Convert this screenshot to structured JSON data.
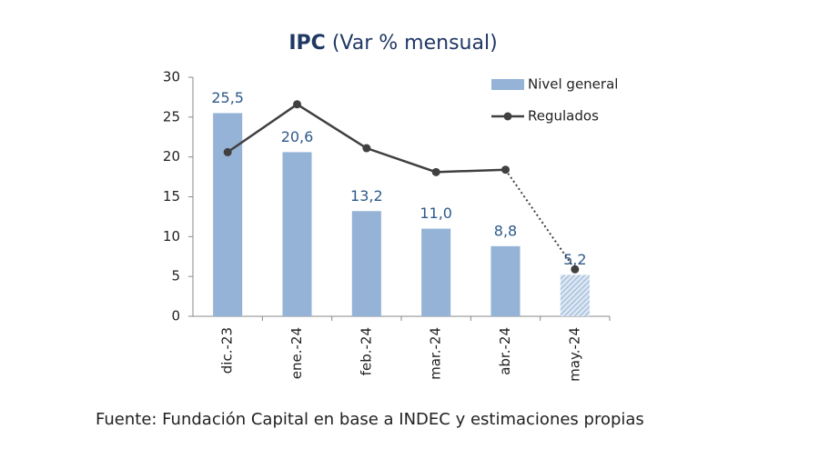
{
  "chart_data": {
    "type": "bar",
    "title": [
      "IPC",
      "(Var % mensual)"
    ],
    "categories": [
      "dic.-23",
      "ene.-24",
      "feb.-24",
      "mar.-24",
      "abr.-24",
      "may.-24"
    ],
    "series": [
      {
        "name": "Nivel general",
        "type": "bar",
        "color": "#95b3d7",
        "values": [
          25.5,
          20.6,
          13.2,
          11.0,
          8.8,
          5.2
        ],
        "value_labels": [
          "25,5",
          "20,6",
          "13,2",
          "11,0",
          "8,8",
          "5,2"
        ]
      },
      {
        "name": "Regulados",
        "type": "line",
        "color": "#404040",
        "values": [
          20.6,
          26.6,
          21.1,
          18.1,
          18.4,
          5.9
        ]
      }
    ],
    "estimated": [
      false,
      false,
      false,
      false,
      false,
      true
    ],
    "ylim": [
      0,
      30
    ],
    "yticks": [
      0,
      5,
      10,
      15,
      20,
      25,
      30
    ],
    "legend": "upper right",
    "source": "Fuente: Fundación Capital en base a INDEC y estimaciones propias"
  }
}
